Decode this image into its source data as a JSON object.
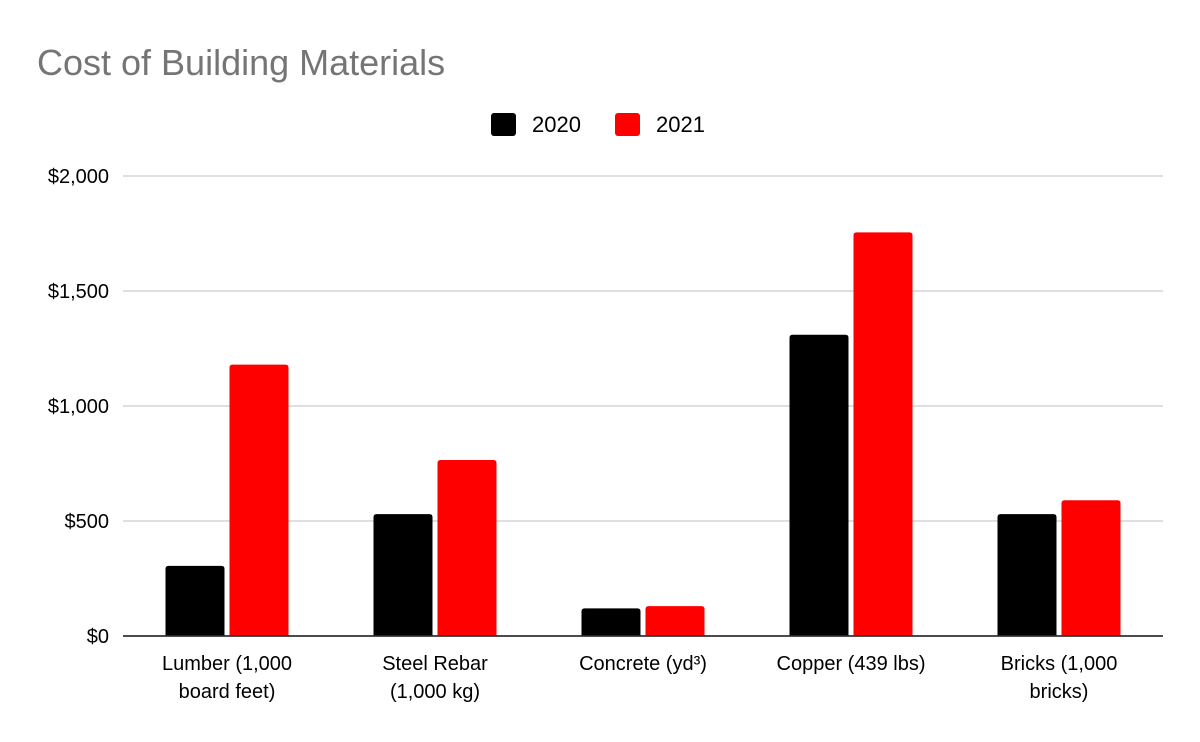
{
  "chart_data": {
    "type": "bar",
    "title": "Cost of Building Materials",
    "categories": [
      [
        "Lumber (1,000",
        "board feet)"
      ],
      [
        "Steel Rebar",
        "(1,000 kg)"
      ],
      [
        "Concrete (yd³)"
      ],
      [
        "Copper (439 lbs)"
      ],
      [
        "Bricks (1,000",
        "bricks)"
      ]
    ],
    "series": [
      {
        "name": "2020",
        "color": "#000000",
        "values": [
          305,
          530,
          120,
          1310,
          530
        ]
      },
      {
        "name": "2021",
        "color": "#ff0000",
        "values": [
          1180,
          765,
          130,
          1755,
          590
        ]
      }
    ],
    "ylim": [
      0,
      2000
    ],
    "yticks": [
      0,
      500,
      1000,
      1500,
      2000
    ],
    "ytick_labels": [
      "$0",
      "$500",
      "$1,000",
      "$1,500",
      "$2,000"
    ],
    "xlabel": "",
    "ylabel": "",
    "legend": "top-center",
    "grid": true
  }
}
